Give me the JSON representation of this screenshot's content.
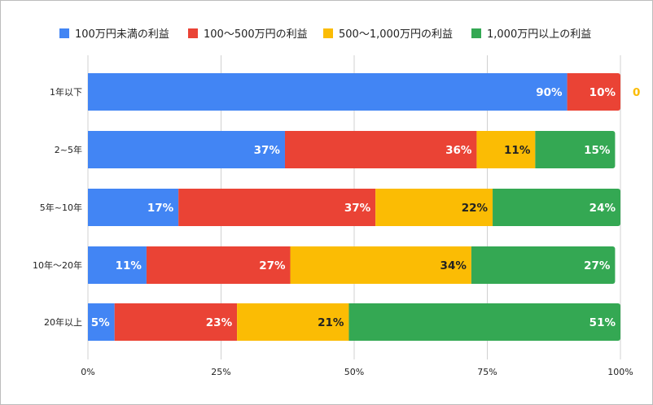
{
  "chart_data": {
    "type": "bar",
    "orientation": "horizontal",
    "stacked": "percent",
    "categories": [
      "1年以下",
      "2~5年",
      "5年~10年",
      "10年〜20年",
      "20年以上"
    ],
    "series": [
      {
        "name": "100万円未満の利益",
        "color": "#4285F4",
        "label_color": "#ffffff",
        "values": [
          90,
          37,
          17,
          11,
          5
        ],
        "labels": [
          "90%",
          "37%",
          "17%",
          "11%",
          "5%"
        ]
      },
      {
        "name": "100〜500万円の利益",
        "color": "#EA4335",
        "label_color": "#ffffff",
        "values": [
          10,
          36,
          37,
          27,
          23
        ],
        "labels": [
          "10%",
          "36%",
          "37%",
          "27%",
          "23%"
        ]
      },
      {
        "name": "500〜1,000万円の利益",
        "color": "#FBBC04",
        "label_color": "#222222",
        "values": [
          0,
          11,
          22,
          34,
          21
        ],
        "labels": [
          "0",
          "11%",
          "22%",
          "34%",
          "21%"
        ]
      },
      {
        "name": "1,000万円以上の利益",
        "color": "#34A853",
        "label_color": "#ffffff",
        "values": [
          0,
          15,
          24,
          27,
          51
        ],
        "labels": [
          "",
          "15%",
          "24%",
          "27%",
          "51%"
        ]
      }
    ],
    "xlim": [
      0,
      100
    ],
    "xticks": [
      "0%",
      "25%",
      "50%",
      "75%",
      "100%"
    ],
    "grid": true,
    "legend": "top"
  }
}
